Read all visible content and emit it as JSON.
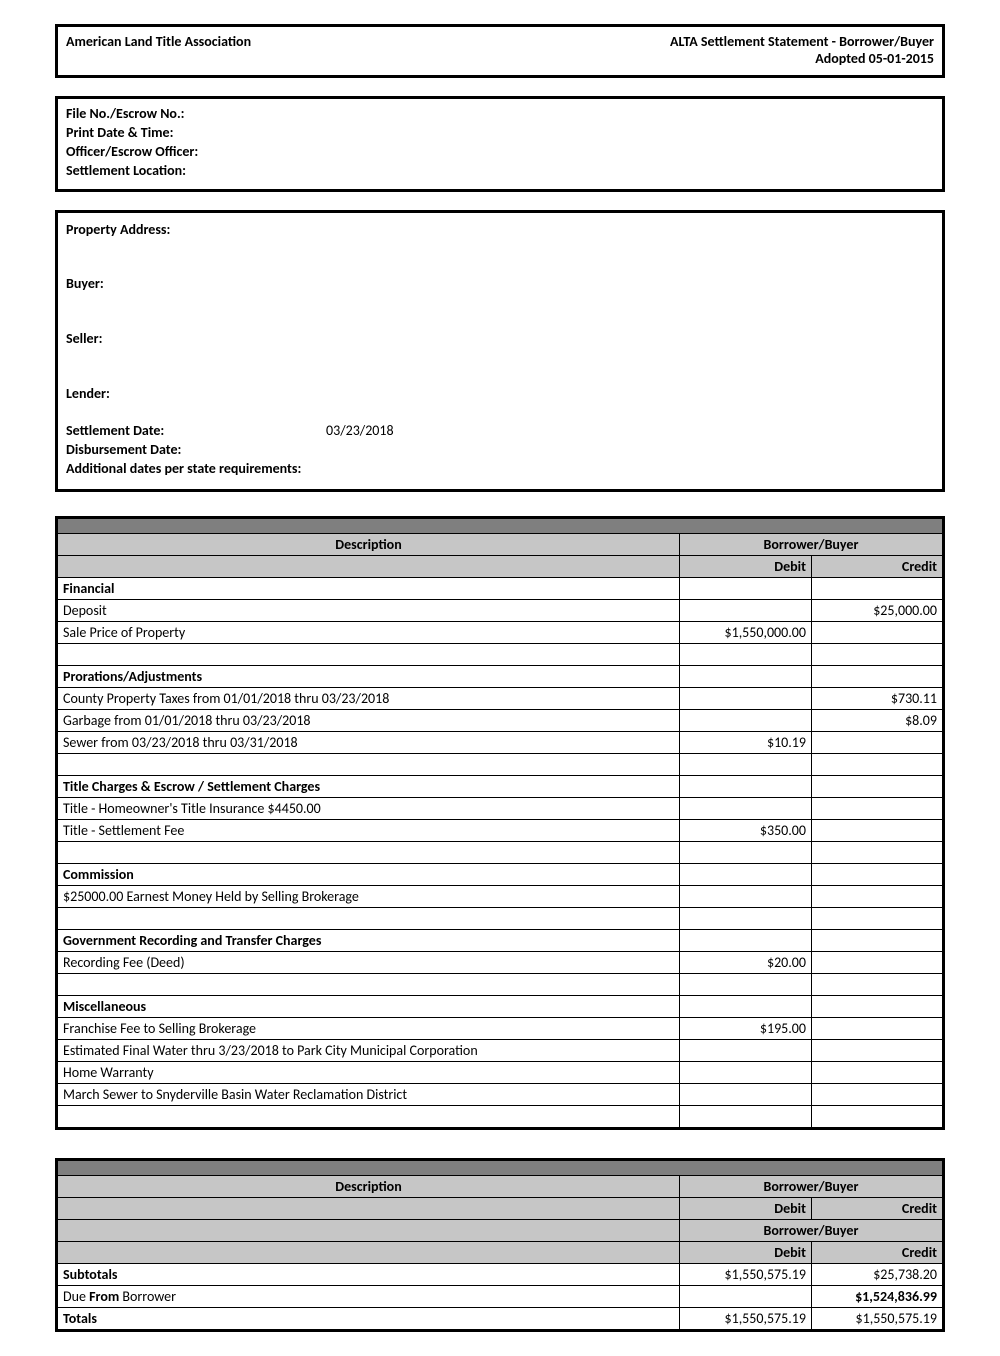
{
  "header": {
    "org": "American Land Title Association",
    "title1": "ALTA Settlement Statement - Borrower/Buyer",
    "title2": "Adopted 05-01-2015"
  },
  "fileinfo": {
    "l1": "File No./Escrow No.:",
    "l2": "Print Date & Time:",
    "l3": "Officer/Escrow Officer:",
    "l4": "Settlement Location:"
  },
  "details": {
    "property_label": "Property Address:",
    "buyer_label": "Buyer:",
    "seller_label": "Seller:",
    "lender_label": "Lender:",
    "settlement_label": "Settlement Date:",
    "settlement_value": "03/23/2018",
    "disbursement_label": "Disbursement Date:",
    "additional_label": "Additional dates per state requirements:"
  },
  "table_headers": {
    "description": "Description",
    "party": "Borrower/Buyer",
    "debit": "Debit",
    "credit": "Credit"
  },
  "rows": [
    {
      "type": "section",
      "desc": "Financial"
    },
    {
      "type": "item",
      "desc": "Deposit",
      "debit": "",
      "credit": "$25,000.00"
    },
    {
      "type": "item",
      "desc": "Sale Price of Property",
      "debit": "$1,550,000.00",
      "credit": ""
    },
    {
      "type": "blank"
    },
    {
      "type": "section",
      "desc": "Prorations/Adjustments"
    },
    {
      "type": "item",
      "desc": "County Property Taxes from 01/01/2018 thru 03/23/2018",
      "debit": "",
      "credit": "$730.11"
    },
    {
      "type": "item",
      "desc": "Garbage from 01/01/2018 thru 03/23/2018",
      "debit": "",
      "credit": "$8.09"
    },
    {
      "type": "item",
      "desc": "Sewer from 03/23/2018 thru 03/31/2018",
      "debit": "$10.19",
      "credit": ""
    },
    {
      "type": "blank"
    },
    {
      "type": "section",
      "desc": "Title Charges & Escrow / Settlement Charges"
    },
    {
      "type": "item",
      "desc": "Title - Homeowner's Title Insurance $4450.00",
      "debit": "",
      "credit": ""
    },
    {
      "type": "item",
      "desc": "Title - Settlement Fee",
      "debit": "$350.00",
      "credit": ""
    },
    {
      "type": "blank"
    },
    {
      "type": "section",
      "desc": "Commission"
    },
    {
      "type": "item",
      "desc": "$25000.00 Earnest Money Held by Selling Brokerage",
      "debit": "",
      "credit": ""
    },
    {
      "type": "blank"
    },
    {
      "type": "section",
      "desc": "Government Recording and Transfer Charges"
    },
    {
      "type": "item",
      "desc": "Recording Fee (Deed)",
      "debit": "$20.00",
      "credit": ""
    },
    {
      "type": "blank"
    },
    {
      "type": "section",
      "desc": "Miscellaneous"
    },
    {
      "type": "item",
      "desc": "Franchise Fee to Selling Brokerage",
      "debit": "$195.00",
      "credit": ""
    },
    {
      "type": "item",
      "desc": "Estimated Final Water thru 3/23/2018 to Park City Municipal Corporation",
      "debit": "",
      "credit": ""
    },
    {
      "type": "item",
      "desc": "Home Warranty",
      "debit": "",
      "credit": ""
    },
    {
      "type": "item",
      "desc": "March Sewer to Snyderville Basin Water Reclamation District",
      "debit": "",
      "credit": ""
    },
    {
      "type": "blank"
    }
  ],
  "totals_rows": [
    {
      "desc": "Subtotals",
      "bold_desc": true,
      "debit": "$1,550,575.19",
      "credit": "$25,738.20",
      "bold_credit": false
    },
    {
      "desc": "Due From Borrower",
      "bold_desc": false,
      "debit": "",
      "credit": "$1,524,836.99",
      "bold_credit": true
    },
    {
      "desc": "Totals",
      "bold_desc": true,
      "debit": "$1,550,575.19",
      "credit": "$1,550,575.19",
      "bold_credit": false
    }
  ],
  "due_from_text": "Due <b>From</b> Borrower"
}
